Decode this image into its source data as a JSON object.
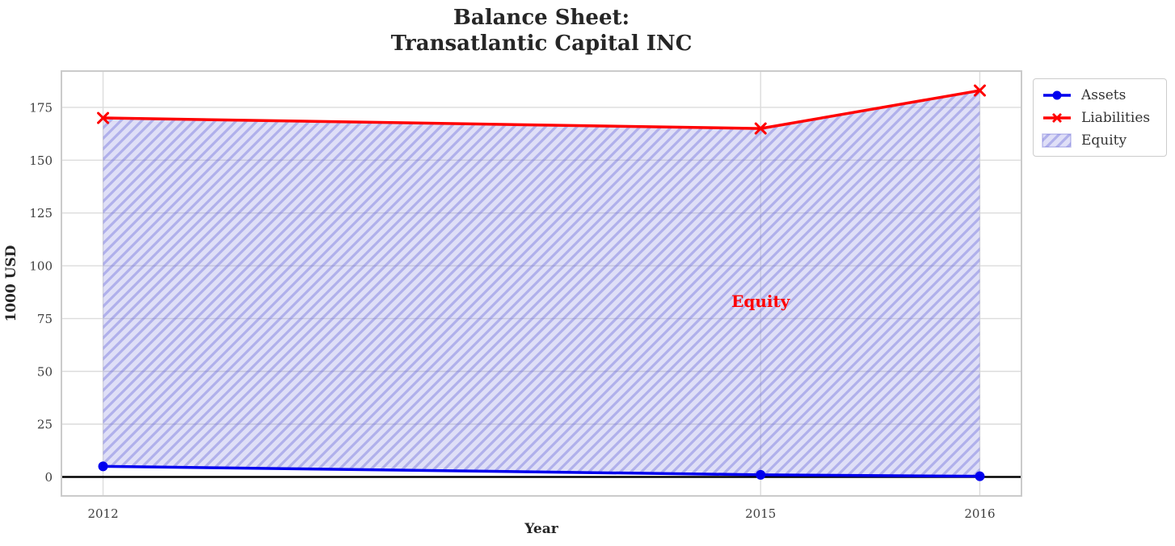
{
  "chart_data": {
    "type": "line",
    "title": "Balance Sheet:\nTransatlantic Capital INC",
    "xlabel": "Year",
    "ylabel": "1000 USD",
    "x": [
      2012,
      2015,
      2016
    ],
    "series": [
      {
        "name": "Assets",
        "values": [
          5,
          1,
          0.3
        ],
        "color": "#0000ee",
        "marker": "circle"
      },
      {
        "name": "Liabilities",
        "values": [
          170,
          165,
          183
        ],
        "color": "#ff0000",
        "marker": "x"
      }
    ],
    "area": {
      "name": "Equity",
      "between": [
        "Assets",
        "Liabilities"
      ],
      "fill_color": "#8080e040",
      "hatch_color": "#6a6ad666",
      "hatch": "/"
    },
    "annotation": {
      "text": "Equity",
      "x": 2015,
      "y": 83,
      "color": "#ff0000"
    },
    "axes": {
      "xticks": [
        2012,
        2015,
        2016
      ],
      "yticks": [
        0,
        25,
        50,
        75,
        100,
        125,
        150,
        175
      ],
      "xlim": [
        2011.81,
        2016.19
      ],
      "ylim": [
        -9.0,
        192.2
      ],
      "zero_line": 0,
      "zero_line_color": "#000000",
      "grid": true,
      "grid_color": "#dcdcdc",
      "spine_color": "#cbcbcb"
    },
    "legend": {
      "position": "outside-top-right",
      "entries": [
        {
          "label": "Assets",
          "swatch": "line-circle"
        },
        {
          "label": "Liabilities",
          "swatch": "line-x"
        },
        {
          "label": "Equity",
          "swatch": "hatched-patch"
        }
      ]
    }
  }
}
